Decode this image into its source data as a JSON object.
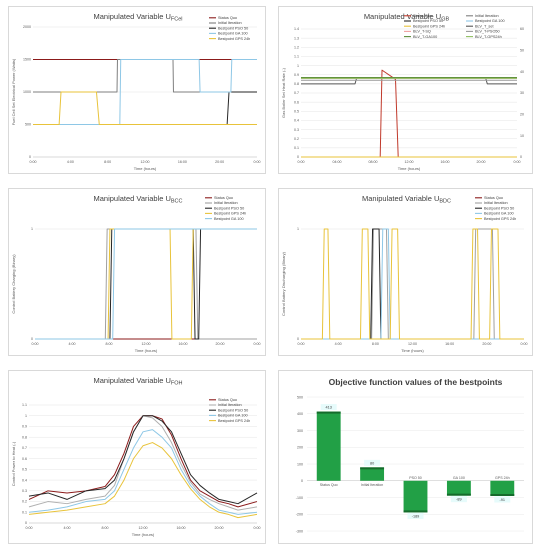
{
  "chart_data": [
    {
      "type": "line",
      "title": "Manipulated Variable U",
      "title_sub": "FCel",
      "xlabel": "Time (hours)",
      "ylabel": "Fuel Cell Set Electrical Power (Watts)",
      "xlim": [
        0,
        24
      ],
      "ylim": [
        0,
        2000
      ],
      "xticks": [
        "0:00",
        "4:00",
        "8:00",
        "12:00",
        "16:00",
        "20:00",
        "0:00"
      ],
      "yticks": [
        "0",
        "500",
        "1000",
        "1500",
        "2000"
      ],
      "legend_position": "top-right",
      "series": [
        {
          "name": "Status Quo",
          "color": "#8b1a1a",
          "x": [
            0,
            24
          ],
          "y": [
            1500,
            1500
          ]
        },
        {
          "name": "Initial Iteration",
          "color": "#7f7f7f",
          "x": [
            0,
            9,
            9.05,
            15,
            15.05,
            24
          ],
          "y": [
            1000,
            1000,
            1500,
            1500,
            1000,
            1000
          ]
        },
        {
          "name": "Bestpoint PSO 50",
          "color": "#262626",
          "x": [
            0,
            20.8,
            21,
            24
          ],
          "y": [
            500,
            500,
            1000,
            1000
          ]
        },
        {
          "name": "Bestpoint GA 100",
          "color": "#8ec7e6",
          "x": [
            0,
            9.3,
            9.4,
            17.8,
            17.9,
            21.2,
            21.3,
            24
          ],
          "y": [
            500,
            500,
            1500,
            1500,
            1000,
            1000,
            1500,
            1500
          ]
        },
        {
          "name": "Bestpoint GPS 24h",
          "color": "#e8c33a",
          "x": [
            0,
            2.8,
            3,
            6.8,
            7.1,
            24
          ],
          "y": [
            500,
            500,
            1000,
            1000,
            500,
            500
          ]
        }
      ]
    },
    {
      "type": "line",
      "title": "Manipulated Variable U",
      "title_sub": "GB",
      "xlabel": "Time (hours)",
      "ylabel": "Gas Boiler Set Heat Rate (-)",
      "xlim": [
        0,
        24
      ],
      "ylim": [
        0,
        1.4
      ],
      "xticks": [
        "0:00",
        "04:00",
        "08:00",
        "12:00",
        "16:00",
        "20:00",
        "0:00"
      ],
      "yticks": [
        "0",
        "0.1",
        "0.2",
        "0.3",
        "0.4",
        "0.5",
        "0.6",
        "0.7",
        "0.8",
        "0.9",
        "1",
        "1.1",
        "1.2",
        "1.3",
        "1.4"
      ],
      "y2ticks": [
        "0",
        "10",
        "20",
        "30",
        "40",
        "50",
        "60"
      ],
      "legend_position": "top-right",
      "series": [
        {
          "name": "Status Quo",
          "color": "#c0392b",
          "x": [
            0,
            8.8,
            9,
            10.5,
            10.8,
            24
          ],
          "y": [
            0,
            0,
            0.95,
            0.85,
            0,
            0
          ]
        },
        {
          "name": "Initial Iteration",
          "color": "#7f7f7f",
          "x": [
            0,
            24
          ],
          "y": [
            0,
            0
          ]
        },
        {
          "name": "Bestpoint PSO 50",
          "color": "#262626",
          "x": [
            0,
            24
          ],
          "y": [
            0,
            0
          ]
        },
        {
          "name": "Bestpoint GA 100",
          "color": "#8ec7e6",
          "x": [
            0,
            24
          ],
          "y": [
            0,
            0
          ]
        },
        {
          "name": "Bestpoint GPS 24h",
          "color": "#e8c33a",
          "x": [
            0,
            24
          ],
          "y": [
            0,
            0
          ]
        },
        {
          "name": "BLV_T_set",
          "color": "#555555",
          "x": [
            0,
            6,
            6.2,
            20.5,
            20.7,
            24
          ],
          "y": [
            0.8,
            0.8,
            0.87,
            0.87,
            0.8,
            0.8
          ]
        },
        {
          "name": "BLV_T-SQ",
          "color": "#f0a0a0",
          "x": [
            0,
            24
          ],
          "y": [
            0.86,
            0.86
          ]
        },
        {
          "name": "BLV_T-PSO50",
          "color": "#999999",
          "x": [
            0,
            24
          ],
          "y": [
            0.84,
            0.84
          ]
        },
        {
          "name": "BLV_T-GA100",
          "color": "#5b8c3a",
          "x": [
            0,
            24
          ],
          "y": [
            0.87,
            0.87
          ]
        },
        {
          "name": "BLV_T-GPS24h",
          "color": "#8fbf60",
          "x": [
            0,
            24
          ],
          "y": [
            0.86,
            0.86
          ]
        }
      ]
    },
    {
      "type": "line",
      "title": "Manipulated Variable U",
      "title_sub": "BCC",
      "xlabel": "Time (hours)",
      "ylabel": "Control Battery Charging (Binary)",
      "xlim": [
        0,
        24
      ],
      "ylim": [
        0,
        1
      ],
      "xticks": [
        "0:00",
        "4:00",
        "8:00",
        "12:00",
        "16:00",
        "20:00",
        "0:00"
      ],
      "yticks": [
        "0",
        "1"
      ],
      "legend_position": "top-right",
      "series": [
        {
          "name": "Status Quo",
          "color": "#8b1a1a",
          "x": [
            0,
            24
          ],
          "y": [
            0,
            0
          ]
        },
        {
          "name": "Initial Iteration",
          "color": "#a0a0a0",
          "x": [
            0,
            7.6,
            7.8,
            17.4,
            17.6,
            24
          ],
          "y": [
            0,
            0,
            1,
            1,
            0,
            0
          ]
        },
        {
          "name": "Bestpoint PSO 50",
          "color": "#262626",
          "x": [
            0,
            8.1,
            8.3,
            17.1,
            17.3,
            17.7,
            17.9,
            24
          ],
          "y": [
            0,
            0,
            1,
            1,
            0,
            0,
            1,
            1
          ]
        },
        {
          "name": "Bestpoint GPS 24h",
          "color": "#e8c33a",
          "x": [
            0,
            7.9,
            8.1,
            14.6,
            14.8,
            16.9,
            17.1,
            24
          ],
          "y": [
            0,
            0,
            1,
            1,
            0,
            0,
            1,
            1
          ]
        },
        {
          "name": "Bestpoint GA 100",
          "color": "#8ec7e6",
          "x": [
            0,
            8.4,
            8.6,
            24
          ],
          "y": [
            0,
            0,
            1,
            1
          ]
        }
      ]
    },
    {
      "type": "line",
      "title": "Manipulated Variable U",
      "title_sub": "BDC",
      "xlabel": "Time (hours)",
      "ylabel": "Control Battery Discharging (Binary)",
      "xlim": [
        0,
        24
      ],
      "ylim": [
        0,
        1
      ],
      "xticks": [
        "0:00",
        "4:00",
        "8:00",
        "12:00",
        "16:00",
        "20:00",
        "0:00"
      ],
      "yticks": [
        "0",
        "1"
      ],
      "legend_position": "top-right",
      "series": [
        {
          "name": "Status Quo",
          "color": "#8b1a1a",
          "x": [
            0,
            24
          ],
          "y": [
            0,
            0
          ]
        },
        {
          "name": "Initial Iteration",
          "color": "#a0a0a0",
          "x": [
            0,
            7.6,
            7.8,
            9.2,
            9.4,
            18.6,
            18.8,
            20.6,
            20.8,
            24
          ],
          "y": [
            0,
            0,
            1,
            1,
            0,
            0,
            1,
            1,
            0,
            0
          ]
        },
        {
          "name": "Bestpoint PSO 50",
          "color": "#262626",
          "x": [
            0,
            7.5,
            7.7,
            8.4,
            8.6,
            24
          ],
          "y": [
            0,
            0,
            1,
            1,
            0,
            0
          ]
        },
        {
          "name": "Bestpoint GA 100",
          "color": "#8ec7e6",
          "x": [
            0,
            8.6,
            8.8,
            9.4,
            9.6,
            24
          ],
          "y": [
            0,
            0,
            1,
            1,
            0,
            0
          ]
        },
        {
          "name": "Bestpoint GPS 24h",
          "color": "#e8c33a",
          "x": [
            0,
            2.3,
            2.5,
            2.9,
            3.1,
            6.4,
            6.6,
            7.2,
            7.4,
            9.6,
            9.8,
            10.4,
            10.6,
            18.3,
            18.5,
            19.0,
            19.2,
            20.3,
            20.5,
            21.2,
            21.4,
            24
          ],
          "y": [
            0,
            0,
            1,
            1,
            0,
            0,
            1,
            1,
            0,
            0,
            1,
            1,
            0,
            0,
            1,
            1,
            0,
            0,
            1,
            1,
            0,
            0
          ]
        }
      ]
    },
    {
      "type": "line",
      "title": "Manipulated Variable U",
      "title_sub": "FOH",
      "xlabel": "Time (hours)",
      "ylabel": "Control Power to Heat (-)",
      "xlim": [
        0,
        24
      ],
      "ylim": [
        0,
        1.1
      ],
      "xticks": [
        "0:00",
        "4:00",
        "8:00",
        "12:00",
        "16:00",
        "20:00",
        "0:00"
      ],
      "yticks": [
        "0",
        "0.1",
        "0.2",
        "0.3",
        "0.4",
        "0.5",
        "0.6",
        "0.7",
        "0.8",
        "0.9",
        "1",
        "1.1"
      ],
      "legend_position": "top-right",
      "series": [
        {
          "name": "Status Quo",
          "color": "#8b1a1a",
          "x": [
            0,
            2,
            4,
            6,
            8,
            9,
            10,
            11,
            12,
            13,
            14,
            15,
            16,
            17,
            18,
            19,
            20,
            21,
            22,
            24
          ],
          "y": [
            0.22,
            0.3,
            0.28,
            0.3,
            0.34,
            0.45,
            0.65,
            0.9,
            1.0,
            1.0,
            0.97,
            0.82,
            0.6,
            0.4,
            0.3,
            0.25,
            0.2,
            0.18,
            0.15,
            0.2
          ]
        },
        {
          "name": "Initial Iteration",
          "color": "#b0b0b0",
          "x": [
            0,
            2,
            4,
            6,
            8,
            9,
            10,
            11,
            12,
            13,
            14,
            15,
            16,
            17,
            18,
            19,
            20,
            21,
            22,
            24
          ],
          "y": [
            0.15,
            0.2,
            0.18,
            0.22,
            0.25,
            0.35,
            0.6,
            0.85,
            1.0,
            0.98,
            0.9,
            0.75,
            0.55,
            0.38,
            0.27,
            0.22,
            0.18,
            0.15,
            0.12,
            0.15
          ]
        },
        {
          "name": "Bestpoint PSO 50",
          "color": "#262626",
          "x": [
            0,
            2,
            4,
            6,
            8,
            9,
            10,
            11,
            12,
            13,
            14,
            15,
            16,
            17,
            18,
            19,
            20,
            21,
            22,
            24
          ],
          "y": [
            0.25,
            0.28,
            0.22,
            0.3,
            0.32,
            0.4,
            0.6,
            0.85,
            1.0,
            1.0,
            0.95,
            0.85,
            0.65,
            0.45,
            0.35,
            0.28,
            0.22,
            0.2,
            0.18,
            0.28
          ]
        },
        {
          "name": "Bestpoint GA 100",
          "color": "#8ec7e6",
          "x": [
            0,
            2,
            4,
            6,
            8,
            9,
            10,
            11,
            12,
            13,
            14,
            15,
            16,
            17,
            18,
            19,
            20,
            21,
            22,
            24
          ],
          "y": [
            0.1,
            0.12,
            0.15,
            0.2,
            0.22,
            0.3,
            0.5,
            0.7,
            0.85,
            0.87,
            0.8,
            0.7,
            0.5,
            0.35,
            0.25,
            0.18,
            0.12,
            0.1,
            0.08,
            0.1
          ]
        },
        {
          "name": "Bestpoint GPS 24h",
          "color": "#e8c33a",
          "x": [
            0,
            2,
            4,
            6,
            8,
            9,
            10,
            11,
            12,
            13,
            14,
            15,
            16,
            17,
            18,
            19,
            20,
            21,
            22,
            24
          ],
          "y": [
            0.08,
            0.1,
            0.12,
            0.15,
            0.18,
            0.25,
            0.4,
            0.6,
            0.72,
            0.75,
            0.7,
            0.6,
            0.45,
            0.32,
            0.22,
            0.15,
            0.1,
            0.08,
            0.05,
            0.08
          ]
        }
      ]
    },
    {
      "type": "bar",
      "title": "Objective function values of the bestpoints",
      "categories": [
        "Status Quo",
        "Initial Iteration",
        "PSO 50",
        "GA 100",
        "GPS 24h"
      ],
      "values": [
        413,
        80,
        -189,
        -89,
        -91
      ],
      "value_labels": [
        "413",
        "80",
        "-189",
        "-89",
        "-91"
      ],
      "ylim": [
        -300,
        500
      ],
      "yticks": [
        "-300",
        "-200",
        "-100",
        "0",
        "100",
        "200",
        "300",
        "400",
        "500"
      ],
      "colors": {
        "bar": "#22a046",
        "bar_dark": "#156b2b",
        "label_bg": "#e6fbfb"
      }
    }
  ]
}
